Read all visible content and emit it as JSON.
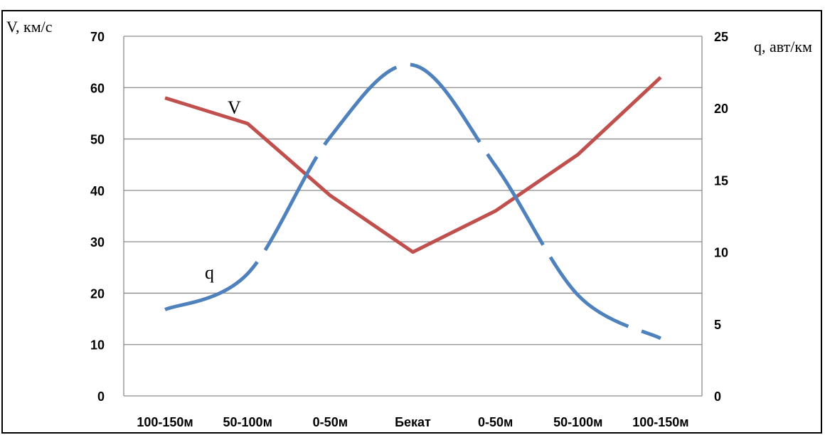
{
  "chart_data": {
    "type": "line",
    "categories": [
      "100-150м",
      "50-100м",
      "0-50м",
      "Бекат",
      "0-50м",
      "50-100м",
      "100-150м"
    ],
    "y_left": {
      "label": "V, км/с",
      "ticks": [
        0,
        10,
        20,
        30,
        40,
        50,
        60,
        70
      ],
      "range": [
        0,
        70
      ]
    },
    "y_right": {
      "label": "q, авт/км",
      "ticks": [
        0,
        5,
        10,
        15,
        20,
        25
      ],
      "range": [
        0,
        25
      ]
    },
    "series": [
      {
        "name": "V",
        "axis": "left",
        "color": "#c0504d",
        "values": [
          58,
          53,
          39,
          28,
          36,
          47,
          62
        ]
      },
      {
        "name": "q",
        "axis": "right",
        "color": "#4f81bd",
        "dashed": true,
        "values": [
          6.0,
          8.5,
          18.0,
          23.0,
          16.0,
          7.0,
          4.0
        ]
      }
    ],
    "grid": true,
    "legend": "none"
  }
}
